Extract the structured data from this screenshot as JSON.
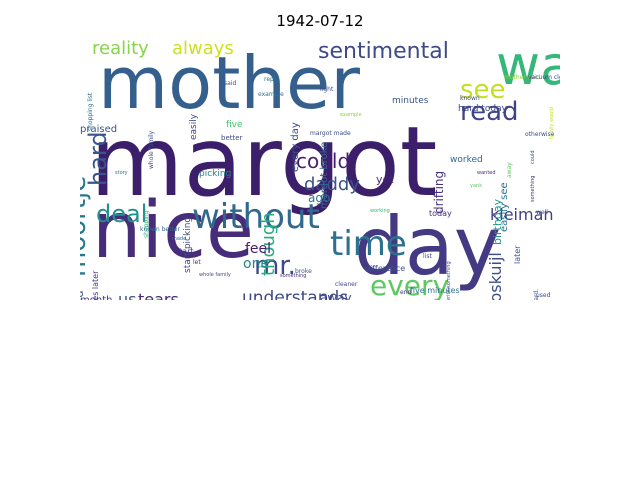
{
  "title": "1942-07-12",
  "words": [
    {
      "text": "margot",
      "color": "#3b1f6b",
      "rot": false
    },
    {
      "text": "mother",
      "color": "#35608d",
      "rot": false
    },
    {
      "text": "nice",
      "color": "#472c7a",
      "rot": false
    },
    {
      "text": "day",
      "color": "#443983",
      "rot": false
    },
    {
      "text": "way",
      "color": "#35b779",
      "rot": false
    },
    {
      "text": "sentimental",
      "color": "#3e4989",
      "rot": false
    },
    {
      "text": "without",
      "color": "#31688e",
      "rot": false
    },
    {
      "text": "deal",
      "color": "#21918c",
      "rot": false
    },
    {
      "text": "time",
      "color": "#2c728e",
      "rot": false
    },
    {
      "text": "mr.",
      "color": "#3e4a89",
      "rot": false
    },
    {
      "text": "every",
      "color": "#5ec962",
      "rot": false
    },
    {
      "text": "read",
      "color": "#404387",
      "rot": false
    },
    {
      "text": "see",
      "color": "#c2df23",
      "rot": false
    },
    {
      "text": "moortje",
      "color": "#2a788e",
      "rot": true
    },
    {
      "text": "hard",
      "color": "#39568c",
      "rot": true
    },
    {
      "text": "reality",
      "color": "#86d549",
      "rot": false
    },
    {
      "text": "always",
      "color": "#cde11d",
      "rot": false
    },
    {
      "text": "kleiman",
      "color": "#433e85",
      "rot": false
    },
    {
      "text": "could",
      "color": "#481f70",
      "rot": false
    },
    {
      "text": "daddy",
      "color": "#3b528b",
      "rot": false
    },
    {
      "text": "understands",
      "color": "#3f4788",
      "rot": false
    },
    {
      "text": "though",
      "color": "#26ad81",
      "rot": true
    },
    {
      "text": "voskuijl",
      "color": "#3c4f8a",
      "rot": true
    },
    {
      "text": "tears",
      "color": "#482878",
      "rot": false
    },
    {
      "text": "us",
      "color": "#3a548c",
      "rot": false
    },
    {
      "text": "one",
      "color": "#25858e",
      "rot": false
    },
    {
      "text": "feel",
      "color": "#481d6f",
      "rot": false
    },
    {
      "text": "away",
      "color": "#3f4889",
      "rot": false
    },
    {
      "text": "month",
      "color": "#46317e",
      "rot": false
    },
    {
      "text": "ago",
      "color": "#2d708e",
      "rot": false
    },
    {
      "text": "yet",
      "color": "#482475",
      "rot": false
    },
    {
      "text": "every day",
      "color": "#3d4e8a",
      "rot": true
    },
    {
      "text": "margot broke",
      "color": "#31668e",
      "rot": true
    },
    {
      "text": "drifting",
      "color": "#46337e",
      "rot": true
    },
    {
      "text": "birthday",
      "color": "#1f998a",
      "rot": true
    },
    {
      "text": "easily see",
      "color": "#2e6e8e",
      "rot": true
    },
    {
      "text": "worked hard",
      "color": "#3b528b",
      "rot": true
    },
    {
      "text": "month ago",
      "color": "#482677",
      "rot": true
    },
    {
      "text": "start picking",
      "color": "#3e4989",
      "rot": true
    },
    {
      "text": "praised",
      "color": "#3b528b",
      "rot": false
    },
    {
      "text": "five",
      "color": "#4ac16d",
      "rot": false
    },
    {
      "text": "minutes",
      "color": "#39568c",
      "rot": false
    },
    {
      "text": "hard today",
      "color": "#3e4a89",
      "rot": false
    },
    {
      "text": "worked",
      "color": "#31688e",
      "rot": false
    },
    {
      "text": "today",
      "color": "#472d7b",
      "rot": false
    },
    {
      "text": "difference",
      "color": "#3b518b",
      "rot": false
    },
    {
      "text": "five minutes",
      "color": "#2c728e",
      "rot": false
    },
    {
      "text": "picking",
      "color": "#25838e",
      "rot": false
    },
    {
      "text": "easily",
      "color": "#3f4788",
      "rot": true
    },
    {
      "text": "shopping list",
      "color": "#2c728e",
      "rot": true
    },
    {
      "text": "mother said",
      "color": "#89d548",
      "rot": false
    },
    {
      "text": "vacuum cleaner",
      "color": "#404387",
      "rot": false
    },
    {
      "text": "minutes later",
      "color": "#46317e",
      "rot": true
    },
    {
      "text": "better",
      "color": "#3f4889",
      "rot": false
    },
    {
      "text": "known better",
      "color": "#31688e",
      "rot": false
    },
    {
      "text": "start",
      "color": "#443983",
      "rot": false
    },
    {
      "text": "let",
      "color": "#472c7a",
      "rot": false
    },
    {
      "text": "made",
      "color": "#31688e",
      "rot": false
    },
    {
      "text": "light",
      "color": "#3e4a89",
      "rot": false
    },
    {
      "text": "reply",
      "color": "#2c728e",
      "rot": false
    },
    {
      "text": "said",
      "color": "#3b528b",
      "rot": false
    },
    {
      "text": "example",
      "color": "#2c728e",
      "rot": false
    },
    {
      "text": "known",
      "color": "#3e4a89",
      "rot": false
    },
    {
      "text": "wanted",
      "color": "#472c7a",
      "rot": false
    },
    {
      "text": "yank",
      "color": "#5ec962",
      "rot": false
    },
    {
      "text": "working",
      "color": "#35b779",
      "rot": false
    },
    {
      "text": "list",
      "color": "#3e4a89",
      "rot": false
    },
    {
      "text": "end",
      "color": "#472c7a",
      "rot": false
    },
    {
      "text": "cleaner",
      "color": "#3e4a89",
      "rot": false
    },
    {
      "text": "broke",
      "color": "#3b528b",
      "rot": false
    },
    {
      "text": "something",
      "color": "#472c7a",
      "rot": false
    },
    {
      "text": "story",
      "color": "#2c728e",
      "rot": false
    },
    {
      "text": "used",
      "color": "#3e4a89",
      "rot": false
    },
    {
      "text": "well",
      "color": "#3b528b",
      "rot": false
    },
    {
      "text": "later",
      "color": "#3b528b",
      "rot": true
    },
    {
      "text": "card.",
      "color": "#3e4a89",
      "rot": true
    },
    {
      "text": "without light",
      "color": "#472c7a",
      "rot": true
    },
    {
      "text": "whole family",
      "color": "#3e4a89",
      "rot": true
    },
    {
      "text": "shopping",
      "color": "#35b779",
      "rot": true
    },
    {
      "text": "afternoon",
      "color": "#5ec962",
      "rot": true
    },
    {
      "text": "otherwise",
      "color": "#3e4a89",
      "rot": false
    },
    {
      "text": "family would",
      "color": "#c2df23",
      "rot": true
    },
    {
      "text": "margot made",
      "color": "#3e4a89",
      "rot": false
    },
    {
      "text": "rewrite something",
      "color": "#3e4a89",
      "rot": true
    },
    {
      "text": "away",
      "color": "#5ec962",
      "rot": true
    },
    {
      "text": "could",
      "color": "#3b528b",
      "rot": true
    },
    {
      "text": "something",
      "color": "#472c7a",
      "rot": true
    },
    {
      "text": "whole family",
      "color": "#3e4a89",
      "rot": false
    },
    {
      "text": "example",
      "color": "#86d549",
      "rot": false
    }
  ]
}
